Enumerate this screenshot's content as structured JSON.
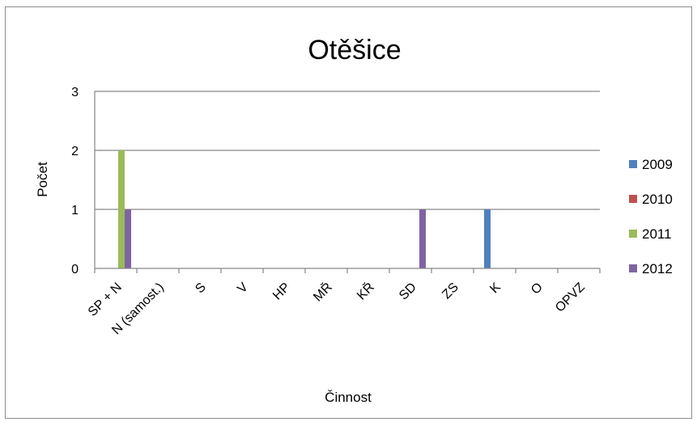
{
  "chart_data": {
    "type": "bar",
    "title": "Otěšice",
    "xlabel": "Činnost",
    "ylabel": "Počet",
    "ylim": [
      0,
      3
    ],
    "yticks": [
      0,
      1,
      2,
      3
    ],
    "grid": true,
    "legend_position": "right",
    "categories": [
      "SP + N",
      "N (samost.)",
      "S",
      "V",
      "HP",
      "MŘ",
      "KŘ",
      "SD",
      "ZS",
      "K",
      "O",
      "OPVZ"
    ],
    "series": [
      {
        "name": "2009",
        "color": "#4f81bd",
        "values": [
          0,
          0,
          0,
          0,
          0,
          0,
          0,
          0,
          0,
          1,
          0,
          0
        ]
      },
      {
        "name": "2010",
        "color": "#c0504d",
        "values": [
          0,
          0,
          0,
          0,
          0,
          0,
          0,
          0,
          0,
          0,
          0,
          0
        ]
      },
      {
        "name": "2011",
        "color": "#9bbb59",
        "values": [
          2,
          0,
          0,
          0,
          0,
          0,
          0,
          0,
          0,
          0,
          0,
          0
        ]
      },
      {
        "name": "2012",
        "color": "#8064a2",
        "values": [
          1,
          0,
          0,
          0,
          0,
          0,
          0,
          1,
          0,
          0,
          0,
          0
        ]
      }
    ]
  }
}
